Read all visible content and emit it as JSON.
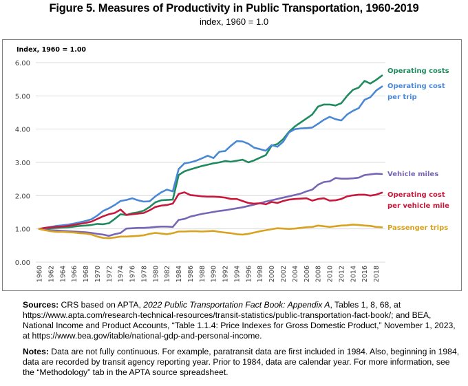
{
  "figure": {
    "title": "Figure 5. Measures of Productivity in Public Transportation, 1960-2019",
    "subtitle": "index, 1960 = 1.0"
  },
  "footer": {
    "sources_label": "Sources:",
    "sources_pre": " CRS based on APTA, ",
    "sources_italic": "2022 Public Transportation Fact Book: Appendix A",
    "sources_post": ", Tables 1, 8, 68, at https://www.apta.com/research-technical-resources/transit-statistics/public-transportation-fact-book/; and BEA, National Income and Product Accounts, “Table 1.1.4: Price Indexes for Gross Domestic Product,” November 1, 2023, at https://www.bea.gov/itable/national-gdp-and-personal-income.",
    "notes_label": "Notes:",
    "notes_text": " Data are not fully continuous. For example, paratransit data are first included in 1984. Also, beginning in 1984, data are recorded by transit agency reporting year. Prior to 1984, data are calendar year. For more information, see the “Methodology” tab in the APTA source spreadsheet."
  },
  "chart_data": {
    "type": "line",
    "title": "Figure 5. Measures of Productivity in Public Transportation, 1960-2019",
    "subtitle": "index, 1960 = 1.0",
    "ylabel": "Index, 1960 = 1.00",
    "xlabel": "",
    "ylim": [
      0,
      6
    ],
    "yticks": [
      "0.00",
      "1.00",
      "2.00",
      "3.00",
      "4.00",
      "5.00",
      "6.00"
    ],
    "xlim": [
      1960,
      2019
    ],
    "xticks": [
      "1960",
      "1962",
      "1964",
      "1966",
      "1968",
      "1970",
      "1972",
      "1974",
      "1976",
      "1978",
      "1980",
      "1982",
      "1984",
      "1986",
      "1988",
      "1990",
      "1992",
      "1994",
      "1996",
      "1998",
      "2000",
      "2002",
      "2004",
      "2006",
      "2008",
      "2010",
      "2012",
      "2014",
      "2016",
      "2018"
    ],
    "grid": "horizontal",
    "legend": "right, labels at line ends",
    "x": [
      1960,
      1961,
      1962,
      1963,
      1964,
      1965,
      1966,
      1967,
      1968,
      1969,
      1970,
      1971,
      1972,
      1973,
      1974,
      1975,
      1976,
      1977,
      1978,
      1979,
      1980,
      1981,
      1982,
      1983,
      1984,
      1985,
      1986,
      1987,
      1988,
      1989,
      1990,
      1991,
      1992,
      1993,
      1994,
      1995,
      1996,
      1997,
      1998,
      1999,
      2000,
      2001,
      2002,
      2003,
      2004,
      2005,
      2006,
      2007,
      2008,
      2009,
      2010,
      2011,
      2012,
      2013,
      2014,
      2015,
      2016,
      2017,
      2018,
      2019
    ],
    "series": [
      {
        "name": "Operating costs",
        "color": "#1f8a5e",
        "values": [
          1.0,
          1.01,
          1.02,
          1.03,
          1.04,
          1.05,
          1.07,
          1.09,
          1.1,
          1.12,
          1.15,
          1.14,
          1.17,
          1.3,
          1.44,
          1.42,
          1.47,
          1.5,
          1.55,
          1.66,
          1.8,
          1.86,
          1.87,
          1.88,
          2.62,
          2.73,
          2.79,
          2.84,
          2.89,
          2.93,
          2.97,
          3.0,
          3.04,
          3.02,
          3.05,
          3.08,
          3.0,
          3.06,
          3.14,
          3.22,
          3.5,
          3.55,
          3.7,
          3.92,
          4.08,
          4.2,
          4.32,
          4.44,
          4.68,
          4.74,
          4.74,
          4.71,
          4.78,
          5.0,
          5.18,
          5.25,
          5.45,
          5.37,
          5.48,
          5.61
        ]
      },
      {
        "name": "Operating cost per trip",
        "color": "#4a88d6",
        "values": [
          1.0,
          1.03,
          1.06,
          1.09,
          1.11,
          1.13,
          1.16,
          1.2,
          1.24,
          1.29,
          1.4,
          1.54,
          1.62,
          1.72,
          1.84,
          1.87,
          1.92,
          1.86,
          1.82,
          1.83,
          1.98,
          2.1,
          2.18,
          2.13,
          2.8,
          2.97,
          3.0,
          3.05,
          3.12,
          3.2,
          3.13,
          3.32,
          3.34,
          3.5,
          3.64,
          3.63,
          3.56,
          3.44,
          3.4,
          3.35,
          3.52,
          3.47,
          3.62,
          3.9,
          4.0,
          4.02,
          4.03,
          4.05,
          4.16,
          4.28,
          4.37,
          4.3,
          4.26,
          4.44,
          4.55,
          4.63,
          4.88,
          4.96,
          5.16,
          5.28
        ]
      },
      {
        "name": "Vehicle miles",
        "color": "#7766b5",
        "values": [
          1.0,
          0.98,
          0.96,
          0.95,
          0.94,
          0.93,
          0.92,
          0.91,
          0.9,
          0.88,
          0.85,
          0.83,
          0.79,
          0.84,
          0.88,
          1.01,
          1.02,
          1.03,
          1.03,
          1.04,
          1.06,
          1.07,
          1.07,
          1.06,
          1.27,
          1.3,
          1.37,
          1.41,
          1.45,
          1.48,
          1.51,
          1.54,
          1.56,
          1.59,
          1.62,
          1.65,
          1.69,
          1.73,
          1.77,
          1.82,
          1.86,
          1.9,
          1.94,
          1.98,
          2.02,
          2.06,
          2.13,
          2.18,
          2.33,
          2.41,
          2.43,
          2.53,
          2.51,
          2.51,
          2.52,
          2.54,
          2.62,
          2.64,
          2.66,
          2.65
        ]
      },
      {
        "name": "Operating cost per vehicle mile",
        "color": "#c8193c",
        "values": [
          1.0,
          1.03,
          1.05,
          1.06,
          1.07,
          1.09,
          1.12,
          1.15,
          1.18,
          1.22,
          1.3,
          1.38,
          1.44,
          1.48,
          1.58,
          1.42,
          1.44,
          1.46,
          1.48,
          1.56,
          1.66,
          1.7,
          1.72,
          1.76,
          2.05,
          2.1,
          2.02,
          2.0,
          1.98,
          1.97,
          1.97,
          1.96,
          1.94,
          1.9,
          1.9,
          1.84,
          1.78,
          1.76,
          1.77,
          1.74,
          1.81,
          1.78,
          1.84,
          1.88,
          1.9,
          1.91,
          1.92,
          1.85,
          1.9,
          1.92,
          1.85,
          1.86,
          1.9,
          1.98,
          2.01,
          2.03,
          2.03,
          2.0,
          2.03,
          2.09
        ]
      },
      {
        "name": "Passenger trips",
        "color": "#d9a21e",
        "values": [
          1.0,
          0.96,
          0.93,
          0.91,
          0.91,
          0.9,
          0.89,
          0.87,
          0.86,
          0.83,
          0.77,
          0.73,
          0.72,
          0.74,
          0.77,
          0.77,
          0.78,
          0.79,
          0.81,
          0.85,
          0.88,
          0.86,
          0.84,
          0.87,
          0.92,
          0.92,
          0.93,
          0.93,
          0.92,
          0.93,
          0.94,
          0.91,
          0.89,
          0.87,
          0.84,
          0.83,
          0.85,
          0.89,
          0.93,
          0.96,
          0.99,
          1.02,
          1.01,
          1.0,
          1.01,
          1.03,
          1.05,
          1.06,
          1.1,
          1.08,
          1.06,
          1.08,
          1.1,
          1.11,
          1.13,
          1.12,
          1.1,
          1.09,
          1.06,
          1.05
        ]
      }
    ],
    "legend_entries": [
      {
        "label_lines": [
          "Operating costs"
        ],
        "color": "#1f8a5e"
      },
      {
        "label_lines": [
          "Operating cost",
          "per trip"
        ],
        "color": "#4a88d6"
      },
      {
        "label_lines": [
          "Vehicle miles"
        ],
        "color": "#7766b5"
      },
      {
        "label_lines": [
          "Operating cost",
          "per vehicle mile"
        ],
        "color": "#c8193c"
      },
      {
        "label_lines": [
          "Passenger trips"
        ],
        "color": "#d9a21e"
      }
    ]
  }
}
